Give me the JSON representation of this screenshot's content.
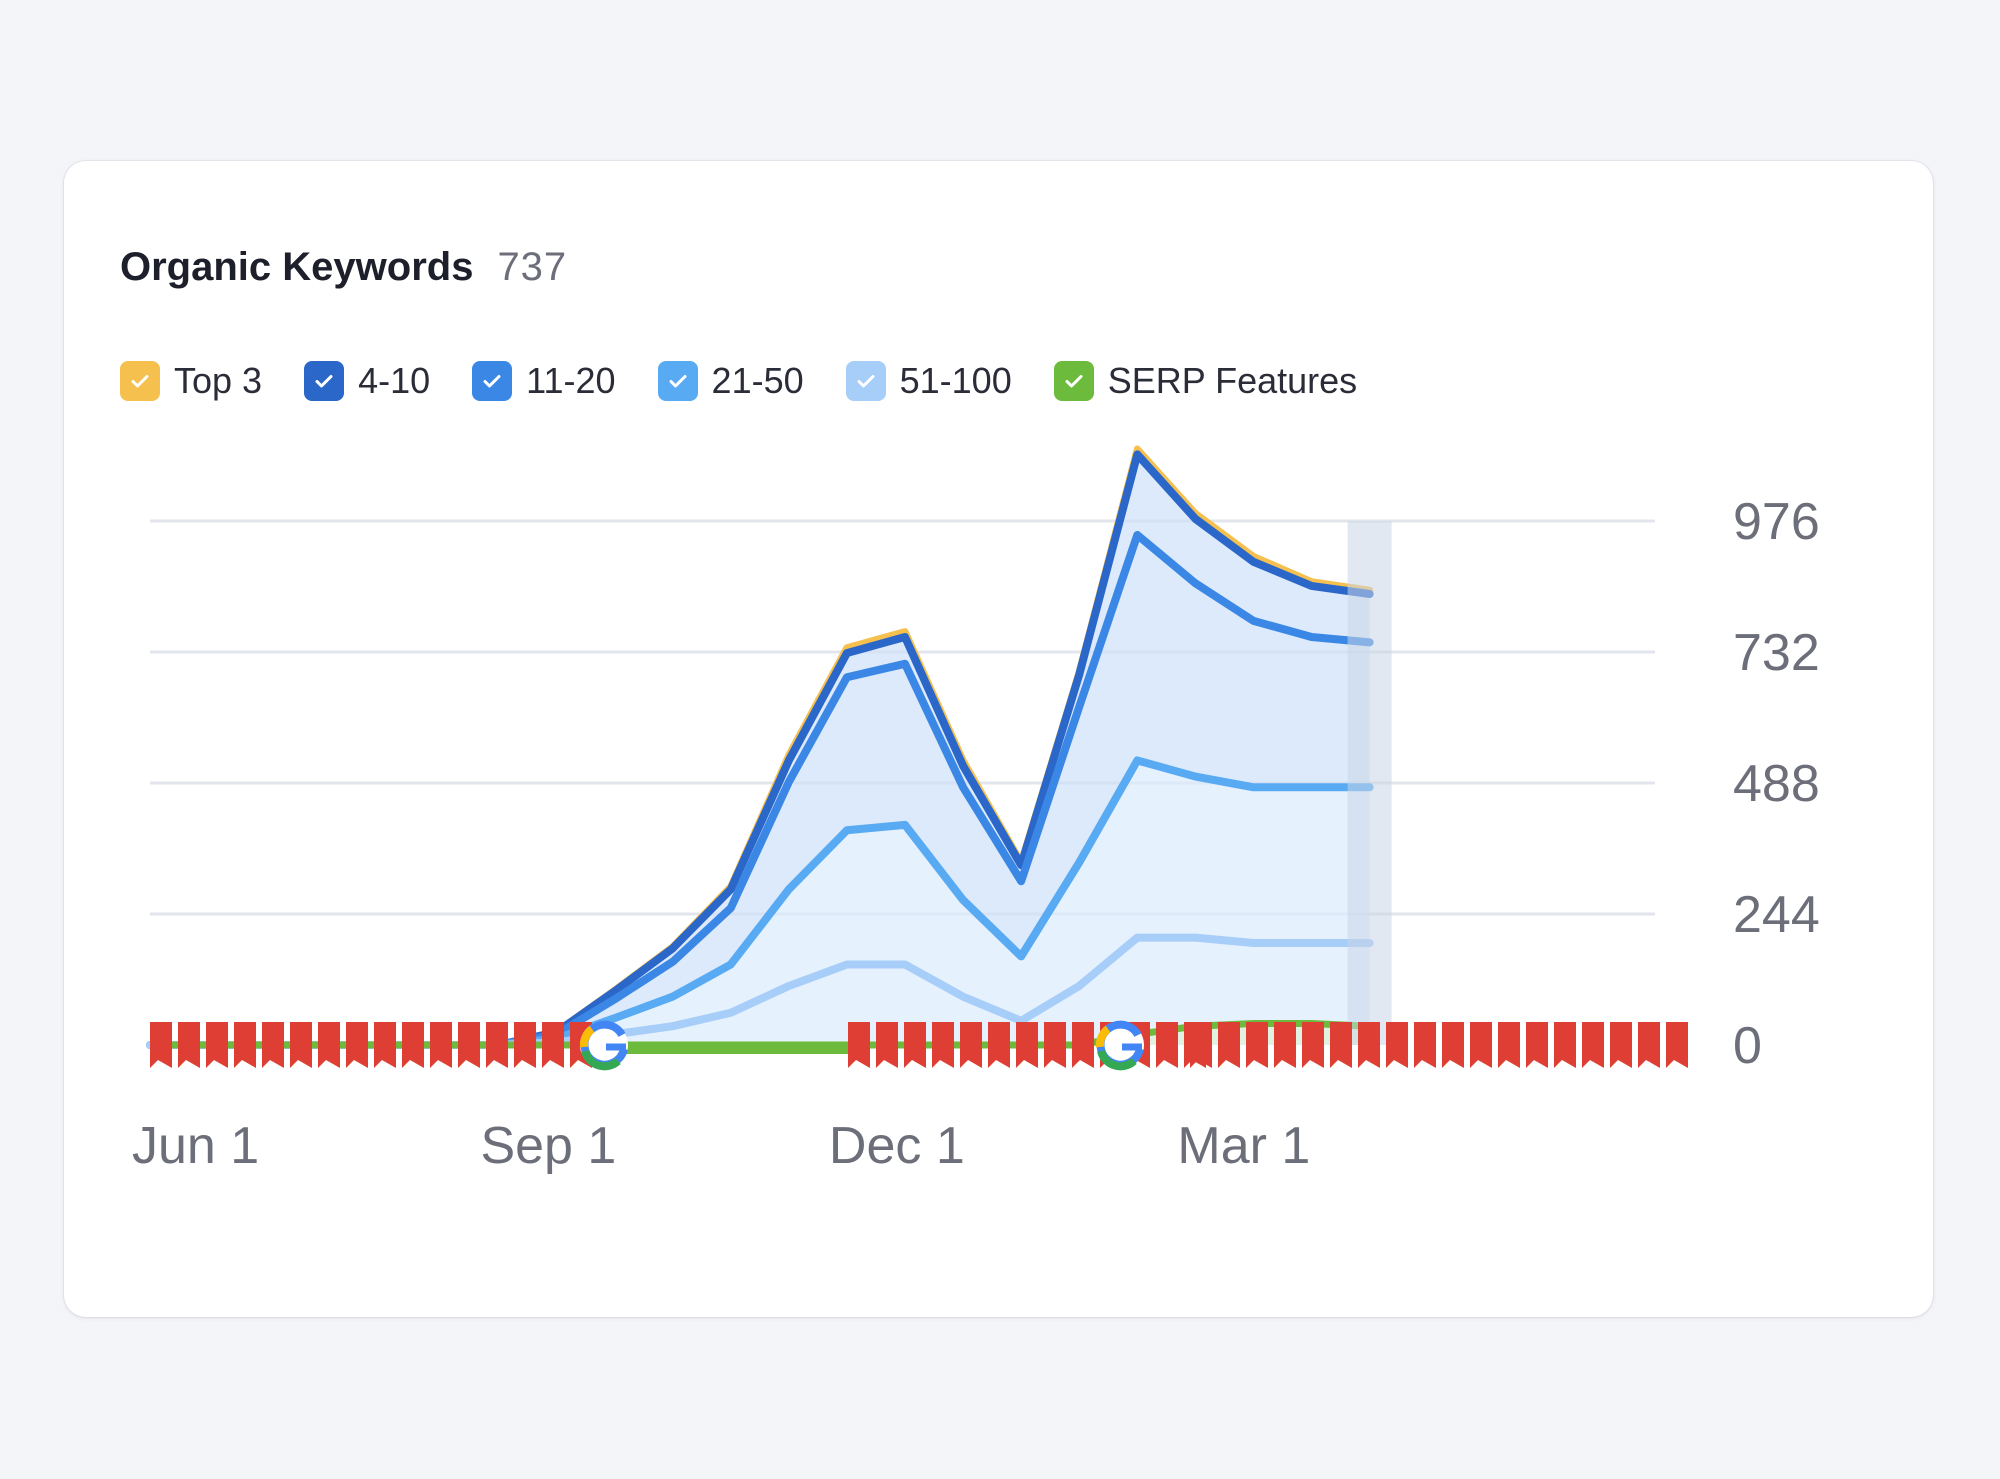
{
  "widget": {
    "title": "Organic Keywords",
    "count": "737"
  },
  "legend": [
    {
      "label": "Top 3",
      "color": "#f6c04f",
      "checked": true
    },
    {
      "label": "4-10",
      "color": "#2a67c9",
      "checked": true
    },
    {
      "label": "11-20",
      "color": "#3b87e6",
      "checked": true
    },
    {
      "label": "21-50",
      "color": "#58aaf3",
      "checked": true
    },
    {
      "label": "51-100",
      "color": "#a7cdf9",
      "checked": true
    },
    {
      "label": "SERP Features",
      "color": "#6cbb3c",
      "checked": true
    }
  ],
  "chart_data": {
    "type": "area",
    "x_ticks": [
      "Jun 1",
      "Sep 1",
      "Dec 1",
      "Mar 1"
    ],
    "y_ticks": [
      "0",
      "244",
      "488",
      "732",
      "976"
    ],
    "ylim": [
      0,
      976
    ],
    "x_months": [
      0,
      1,
      2,
      3,
      3.5,
      4,
      4.5,
      5,
      5.5,
      6,
      6.5,
      7,
      7.5,
      8,
      8.5,
      9,
      9.5,
      10,
      10.5
    ],
    "series": [
      {
        "name": "51-100",
        "color": "#a7cdf9",
        "values": [
          0,
          0,
          0,
          0,
          5,
          20,
          35,
          60,
          110,
          150,
          150,
          90,
          45,
          110,
          200,
          200,
          190,
          190,
          190
        ]
      },
      {
        "name": "21-50",
        "color": "#58aaf3",
        "values": [
          0,
          0,
          0,
          0,
          7,
          30,
          55,
          90,
          180,
          250,
          260,
          180,
          120,
          230,
          330,
          300,
          290,
          290,
          290
        ]
      },
      {
        "name": "11-20",
        "color": "#3b87e6",
        "values": [
          0,
          0,
          0,
          0,
          8,
          35,
          65,
          105,
          200,
          285,
          300,
          210,
          140,
          290,
          420,
          360,
          310,
          280,
          270
        ]
      },
      {
        "name": "4-10",
        "color": "#2a67c9",
        "values": [
          0,
          0,
          0,
          0,
          4,
          15,
          25,
          35,
          40,
          45,
          50,
          40,
          30,
          60,
          150,
          120,
          110,
          95,
          90
        ]
      },
      {
        "name": "Top 3",
        "color": "#f6c04f",
        "values": [
          0,
          0,
          0,
          0,
          1,
          2,
          3,
          5,
          10,
          10,
          10,
          10,
          5,
          5,
          10,
          10,
          10,
          8,
          7
        ]
      }
    ],
    "serp_features": {
      "color": "#6cbb3c",
      "values": [
        0,
        0,
        0,
        0,
        0,
        0,
        0,
        0,
        0,
        0,
        0,
        0,
        0,
        0,
        20,
        35,
        40,
        40,
        35
      ]
    },
    "grid": true,
    "legend_position": "top-left"
  },
  "colors": {
    "google_red": "#de3e34",
    "google_blue": "#4285f4",
    "google_green": "#34a853",
    "google_yellow": "#fbbc05",
    "grid": "#e3e5ec"
  }
}
